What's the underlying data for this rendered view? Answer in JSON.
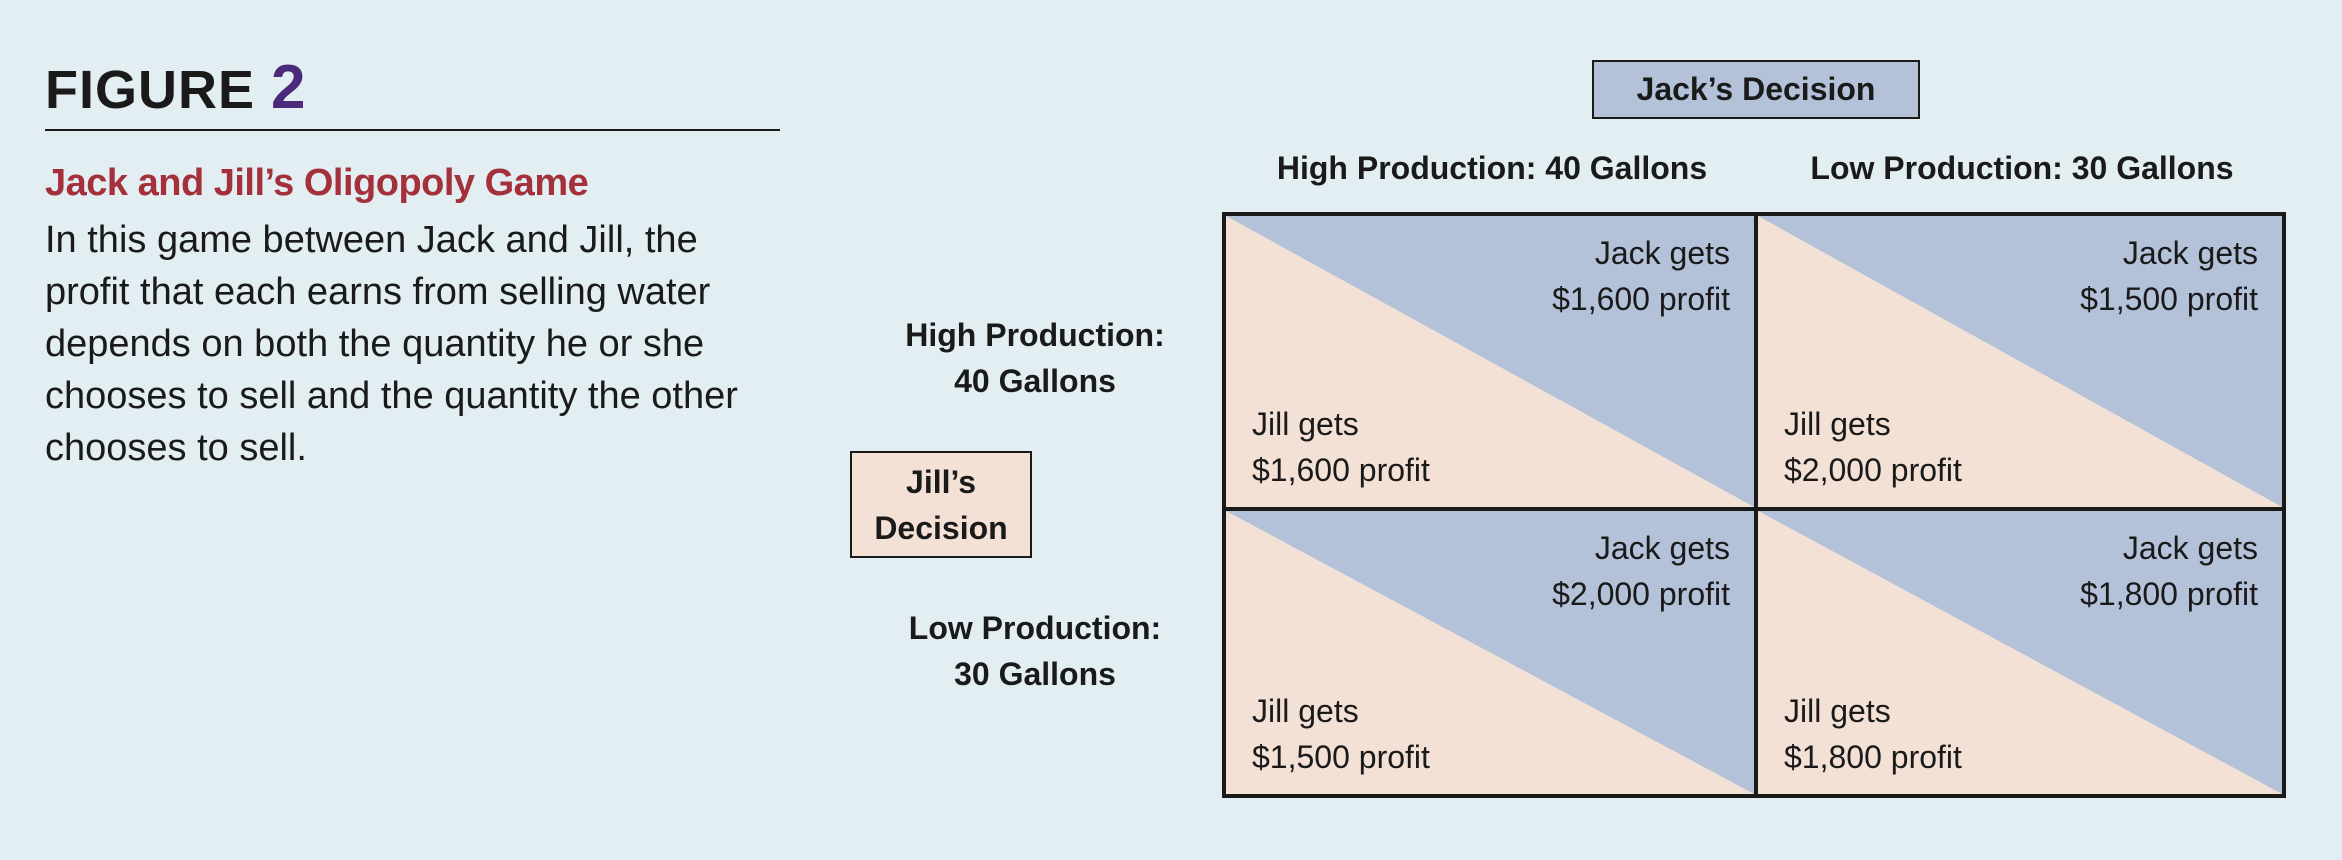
{
  "figure": {
    "label": "FIGURE",
    "number": "2"
  },
  "caption": {
    "title": "Jack and Jill’s Oligopoly Game",
    "body": "In this game between Jack and Jill, the profit that each earns from selling water depends on both the quantity he or she chooses to sell and the quantity the other chooses to sell."
  },
  "matrix": {
    "jack_label": "Jack’s Decision",
    "jill_label_line1": "Jill’s",
    "jill_label_line2": "Decision",
    "columns": [
      "High Production: 40 Gallons",
      "Low Production: 30 Gallons"
    ],
    "rows": [
      {
        "line1": "High Production:",
        "line2": "40 Gallons"
      },
      {
        "line1": "Low Production:",
        "line2": "30 Gallons"
      }
    ],
    "cells": [
      [
        {
          "jack_line1": "Jack gets",
          "jack_line2": "$1,600 profit",
          "jill_line1": "Jill gets",
          "jill_line2": "$1,600 profit"
        },
        {
          "jack_line1": "Jack gets",
          "jack_line2": "$1,500 profit",
          "jill_line1": "Jill gets",
          "jill_line2": "$2,000 profit"
        }
      ],
      [
        {
          "jack_line1": "Jack gets",
          "jack_line2": "$2,000 profit",
          "jill_line1": "Jill gets",
          "jill_line2": "$1,500 profit"
        },
        {
          "jack_line1": "Jack gets",
          "jack_line2": "$1,800 profit",
          "jill_line1": "Jill gets",
          "jill_line2": "$1,800 profit"
        }
      ]
    ]
  },
  "colors": {
    "background": "#e3eef2",
    "jack": "#b3c1d9",
    "jill": "#f3e1d6",
    "title_accent": "#a3303a",
    "figure_number": "#4b2a7b"
  }
}
